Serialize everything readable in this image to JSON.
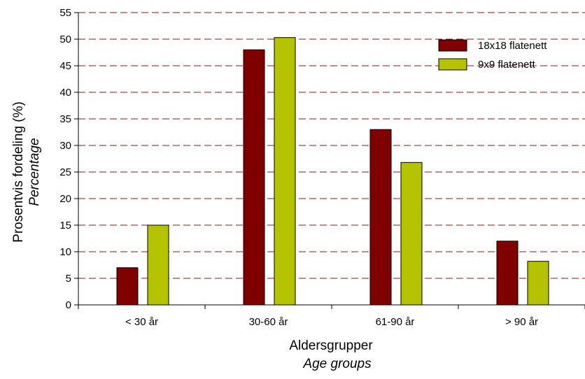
{
  "chart_data": {
    "type": "bar",
    "title": "",
    "xlabel": "Aldersgrupper",
    "xlabel_en": "Age groups",
    "ylabel": "Prosentvis fordeling (%)",
    "ylabel_en": "Percentage",
    "categories": [
      "< 30 år",
      "30-60 år",
      "61-90 år",
      "> 90 år"
    ],
    "series": [
      {
        "name": "18x18 flatenett",
        "values": [
          7,
          48,
          33,
          12
        ],
        "color": "#800000"
      },
      {
        "name": "9x9 flatenett",
        "values": [
          15,
          50.3,
          26.8,
          8.2
        ],
        "color": "#b5c200"
      }
    ],
    "ylim": [
      0,
      55
    ],
    "yticks": [
      0,
      5,
      10,
      15,
      20,
      25,
      30,
      35,
      40,
      45,
      50,
      55
    ],
    "grid": true,
    "grid_color": "#8b1a1a",
    "legend_position": "top-right"
  }
}
